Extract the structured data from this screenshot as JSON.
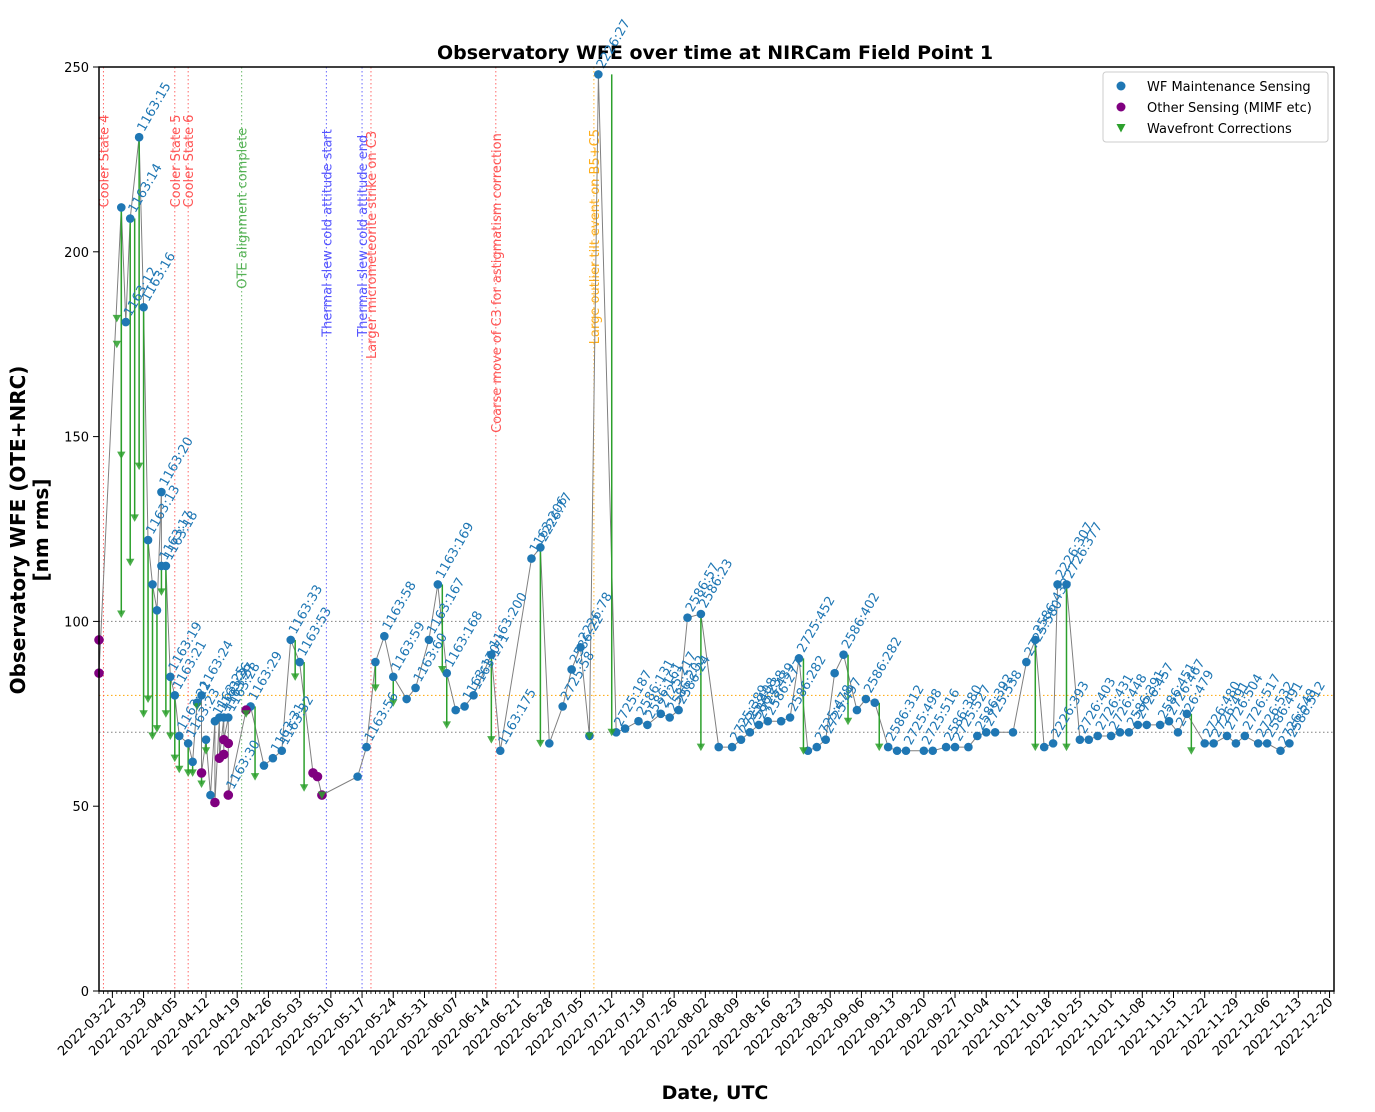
{
  "chart_data": {
    "type": "scatter",
    "title": "Observatory WFE over time at NIRCam Field Point 1",
    "xlabel": "Date, UTC",
    "ylabel_line1": "Observatory WFE (OTE+NRC)",
    "ylabel_line2": "[nm rms]",
    "xlim": [
      "2022-03-19",
      "2022-12-21"
    ],
    "ylim": [
      0,
      250
    ],
    "yticks": [
      0,
      50,
      100,
      150,
      200,
      250
    ],
    "xticks": [
      "2022-03-22",
      "2022-03-29",
      "2022-04-05",
      "2022-04-12",
      "2022-04-19",
      "2022-04-26",
      "2022-05-03",
      "2022-05-10",
      "2022-05-17",
      "2022-05-24",
      "2022-05-31",
      "2022-06-07",
      "2022-06-14",
      "2022-06-21",
      "2022-06-28",
      "2022-07-05",
      "2022-07-12",
      "2022-07-19",
      "2022-07-26",
      "2022-08-02",
      "2022-08-09",
      "2022-08-16",
      "2022-08-23",
      "2022-08-30",
      "2022-09-06",
      "2022-09-13",
      "2022-09-20",
      "2022-09-27",
      "2022-10-04",
      "2022-10-11",
      "2022-10-18",
      "2022-10-25",
      "2022-11-01",
      "2022-11-08",
      "2022-11-15",
      "2022-11-22",
      "2022-11-29",
      "2022-12-06",
      "2022-12-13",
      "2022-12-20"
    ],
    "legend": {
      "placement": "top-right",
      "entries": [
        {
          "label": "WF Maintenance Sensing",
          "color": "#1f77b4",
          "marker": "circle"
        },
        {
          "label": "Other Sensing (MIMF etc)",
          "color": "#800080",
          "marker": "circle"
        },
        {
          "label": "Wavefront Corrections",
          "color": "#2ca02c",
          "marker": "triangle-down"
        }
      ]
    },
    "hlines": [
      {
        "y": 100,
        "color": "#808080",
        "style": "dotted"
      },
      {
        "y": 80,
        "color": "#ffa500",
        "style": "dotted"
      },
      {
        "y": 70,
        "color": "#808080",
        "style": "dotted"
      }
    ],
    "events": [
      {
        "date": "2022-03-20",
        "label": "Cooler State 4",
        "color": "#ff4444",
        "y": 212
      },
      {
        "date": "2022-04-05",
        "label": "Cooler State 5",
        "color": "#ff4444",
        "y": 212
      },
      {
        "date": "2022-04-08",
        "label": "Cooler State 6",
        "color": "#ff4444",
        "y": 212
      },
      {
        "date": "2022-04-20",
        "label": "OTE alignment complete",
        "color": "#44aa44",
        "y": 190
      },
      {
        "date": "2022-05-09",
        "label": "Thermal slew cold attitude start",
        "color": "#4444ff",
        "y": 177
      },
      {
        "date": "2022-05-17",
        "label": "Thermal slew cold attitude end",
        "color": "#4444ff",
        "y": 177
      },
      {
        "date": "2022-05-19",
        "label": "Larger micrometeorite strike on C3",
        "color": "#ff4444",
        "y": 171
      },
      {
        "date": "2022-06-16",
        "label": "Coarse move of C3 for astigmatism correction",
        "color": "#ff4444",
        "y": 151
      },
      {
        "date": "2022-07-08",
        "label": "Large outlier tilt event on B5+C5",
        "color": "#ffa500",
        "y": 175
      }
    ],
    "series": [
      {
        "name": "WF Maintenance Sensing",
        "color": "#1f77b4",
        "points": [
          {
            "x": "2022-03-24",
            "y": 212
          },
          {
            "x": "2022-03-25",
            "y": 181,
            "label": "1163:12"
          },
          {
            "x": "2022-03-26",
            "y": 209,
            "label": "1163:14"
          },
          {
            "x": "2022-03-28",
            "y": 231,
            "label": "1163:15"
          },
          {
            "x": "2022-03-29",
            "y": 185,
            "label": "1163:16"
          },
          {
            "x": "2022-03-30",
            "y": 122,
            "label": "1163:13"
          },
          {
            "x": "2022-03-31",
            "y": 110
          },
          {
            "x": "2022-04-01",
            "y": 103
          },
          {
            "x": "2022-04-02",
            "y": 135,
            "label": "1163:20"
          },
          {
            "x": "2022-04-02",
            "y": 115,
            "label": "1163:17"
          },
          {
            "x": "2022-04-03",
            "y": 115,
            "label": "1163:18"
          },
          {
            "x": "2022-04-04",
            "y": 85,
            "label": "1163:19"
          },
          {
            "x": "2022-04-05",
            "y": 80,
            "label": "1163:21"
          },
          {
            "x": "2022-04-06",
            "y": 69,
            "label": "1163:22"
          },
          {
            "x": "2022-04-08",
            "y": 67,
            "label": "1163:23"
          },
          {
            "x": "2022-04-09",
            "y": 62
          },
          {
            "x": "2022-04-10",
            "y": 78
          },
          {
            "x": "2022-04-11",
            "y": 80,
            "label": "1163:24"
          },
          {
            "x": "2022-04-12",
            "y": 68
          },
          {
            "x": "2022-04-13",
            "y": 53
          },
          {
            "x": "2022-04-14",
            "y": 73,
            "label": "1163:25"
          },
          {
            "x": "2022-04-15",
            "y": 74,
            "label": "1163:26"
          },
          {
            "x": "2022-04-16",
            "y": 74,
            "label": "1163:27"
          },
          {
            "x": "2022-04-17",
            "y": 74,
            "label": "1163:28"
          },
          {
            "x": "2022-04-22",
            "y": 77,
            "label": "1163:29"
          },
          {
            "x": "2022-04-25",
            "y": 61
          },
          {
            "x": "2022-04-27",
            "y": 63,
            "label": "1163:31"
          },
          {
            "x": "2022-04-29",
            "y": 65,
            "label": "1163:32"
          },
          {
            "x": "2022-05-01",
            "y": 95,
            "label": "1163:33"
          },
          {
            "x": "2022-05-03",
            "y": 89,
            "label": "1163:53"
          },
          {
            "x": "2022-05-16",
            "y": 58
          },
          {
            "x": "2022-05-18",
            "y": 66,
            "label": "1163:56"
          },
          {
            "x": "2022-05-20",
            "y": 89
          },
          {
            "x": "2022-05-22",
            "y": 96,
            "label": "1163:58"
          },
          {
            "x": "2022-05-24",
            "y": 85,
            "label": "1163:59"
          },
          {
            "x": "2022-05-27",
            "y": 79
          },
          {
            "x": "2022-05-29",
            "y": 82,
            "label": "1163:60"
          },
          {
            "x": "2022-06-01",
            "y": 95,
            "label": "1163:167"
          },
          {
            "x": "2022-06-03",
            "y": 110,
            "label": "1163:169"
          },
          {
            "x": "2022-06-05",
            "y": 86,
            "label": "1163:168"
          },
          {
            "x": "2022-06-07",
            "y": 76
          },
          {
            "x": "2022-06-09",
            "y": 77,
            "label": "1163:170"
          },
          {
            "x": "2022-06-11",
            "y": 80,
            "label": "1163:171"
          },
          {
            "x": "2022-06-15",
            "y": 91,
            "label": "1163:200"
          },
          {
            "x": "2022-06-17",
            "y": 65,
            "label": "1163:175"
          },
          {
            "x": "2022-06-24",
            "y": 117,
            "label": "1163:206"
          },
          {
            "x": "2022-06-26",
            "y": 120,
            "label": "2226:77"
          },
          {
            "x": "2022-06-28",
            "y": 67
          },
          {
            "x": "2022-07-01",
            "y": 77,
            "label": "2725:58"
          },
          {
            "x": "2022-07-03",
            "y": 87,
            "label": "2586:22"
          },
          {
            "x": "2022-07-05",
            "y": 93,
            "label": "2226:78"
          },
          {
            "x": "2022-07-07",
            "y": 69
          },
          {
            "x": "2022-07-09",
            "y": 248,
            "label": "2226:27"
          },
          {
            "x": "2022-07-13",
            "y": 70,
            "label": "2725:187"
          },
          {
            "x": "2022-07-15",
            "y": 71
          },
          {
            "x": "2022-07-18",
            "y": 73,
            "label": "2586:131"
          },
          {
            "x": "2022-07-20",
            "y": 72,
            "label": "2586:161"
          },
          {
            "x": "2022-07-23",
            "y": 75,
            "label": "2725:217"
          },
          {
            "x": "2022-07-25",
            "y": 74,
            "label": "2586:202"
          },
          {
            "x": "2022-07-27",
            "y": 76,
            "label": "2586:24"
          },
          {
            "x": "2022-07-29",
            "y": 101,
            "label": "2586:57"
          },
          {
            "x": "2022-08-01",
            "y": 102,
            "label": "2586:23"
          },
          {
            "x": "2022-08-05",
            "y": 66
          },
          {
            "x": "2022-08-08",
            "y": 66,
            "label": "2725:389"
          },
          {
            "x": "2022-08-10",
            "y": 68,
            "label": "2725:408"
          },
          {
            "x": "2022-08-12",
            "y": 70,
            "label": "2586:238"
          },
          {
            "x": "2022-08-14",
            "y": 72,
            "label": "2725:439"
          },
          {
            "x": "2022-08-16",
            "y": 73,
            "label": "2586:277"
          },
          {
            "x": "2022-08-19",
            "y": 73
          },
          {
            "x": "2022-08-21",
            "y": 74,
            "label": "2586:282"
          },
          {
            "x": "2022-08-23",
            "y": 90,
            "label": "2725:452"
          },
          {
            "x": "2022-08-25",
            "y": 65
          },
          {
            "x": "2022-08-27",
            "y": 66,
            "label": "2725:478"
          },
          {
            "x": "2022-08-29",
            "y": 68,
            "label": "2725:497"
          },
          {
            "x": "2022-08-31",
            "y": 86
          },
          {
            "x": "2022-09-02",
            "y": 91,
            "label": "2586:402"
          },
          {
            "x": "2022-09-05",
            "y": 76
          },
          {
            "x": "2022-09-07",
            "y": 79,
            "label": "2586:282"
          },
          {
            "x": "2022-09-09",
            "y": 78
          },
          {
            "x": "2022-09-12",
            "y": 66,
            "label": "2586:312"
          },
          {
            "x": "2022-09-14",
            "y": 65
          },
          {
            "x": "2022-09-16",
            "y": 65,
            "label": "2725:498"
          },
          {
            "x": "2022-09-20",
            "y": 65,
            "label": "2725:516"
          },
          {
            "x": "2022-09-22",
            "y": 65
          },
          {
            "x": "2022-09-25",
            "y": 66,
            "label": "2586:380"
          },
          {
            "x": "2022-09-27",
            "y": 66,
            "label": "2725:527"
          },
          {
            "x": "2022-09-30",
            "y": 66
          },
          {
            "x": "2022-10-02",
            "y": 69,
            "label": "2586:392"
          },
          {
            "x": "2022-10-04",
            "y": 70,
            "label": "2725:538"
          },
          {
            "x": "2022-10-06",
            "y": 70
          },
          {
            "x": "2022-10-10",
            "y": 70
          },
          {
            "x": "2022-10-13",
            "y": 89,
            "label": "2725:580"
          },
          {
            "x": "2022-10-15",
            "y": 95,
            "label": "2586:432"
          },
          {
            "x": "2022-10-17",
            "y": 66
          },
          {
            "x": "2022-10-19",
            "y": 67,
            "label": "2226:393"
          },
          {
            "x": "2022-10-20",
            "y": 110,
            "label": "2226:307"
          },
          {
            "x": "2022-10-22",
            "y": 110,
            "label": "2726:377"
          },
          {
            "x": "2022-10-25",
            "y": 68,
            "label": "2726:403"
          },
          {
            "x": "2022-10-27",
            "y": 68
          },
          {
            "x": "2022-10-29",
            "y": 69,
            "label": "2726:431"
          },
          {
            "x": "2022-11-01",
            "y": 69,
            "label": "2726:448"
          },
          {
            "x": "2022-11-03",
            "y": 70
          },
          {
            "x": "2022-11-05",
            "y": 70,
            "label": "2586:391"
          },
          {
            "x": "2022-11-07",
            "y": 72,
            "label": "2726:457"
          },
          {
            "x": "2022-11-09",
            "y": 72
          },
          {
            "x": "2022-11-12",
            "y": 72,
            "label": "2586:451"
          },
          {
            "x": "2022-11-14",
            "y": 73,
            "label": "2726:467"
          },
          {
            "x": "2022-11-16",
            "y": 70,
            "label": "2726:479"
          },
          {
            "x": "2022-11-18",
            "y": 75
          },
          {
            "x": "2022-11-22",
            "y": 67,
            "label": "2726:480"
          },
          {
            "x": "2022-11-24",
            "y": 67,
            "label": "2726:491"
          },
          {
            "x": "2022-11-27",
            "y": 69,
            "label": "2726:504"
          },
          {
            "x": "2022-11-29",
            "y": 67
          },
          {
            "x": "2022-12-01",
            "y": 69,
            "label": "2726:517"
          },
          {
            "x": "2022-12-04",
            "y": 67,
            "label": "2726:532"
          },
          {
            "x": "2022-12-06",
            "y": 67,
            "label": "2586:491"
          },
          {
            "x": "2022-12-09",
            "y": 65,
            "label": "2726:548"
          },
          {
            "x": "2022-12-11",
            "y": 67,
            "label": "2586:512"
          }
        ]
      },
      {
        "name": "Other Sensing (MIMF etc)",
        "color": "#800080",
        "points": [
          {
            "x": "2022-03-19",
            "y": 95
          },
          {
            "x": "2022-03-19",
            "y": 86
          },
          {
            "x": "2022-04-11",
            "y": 59
          },
          {
            "x": "2022-04-14",
            "y": 51
          },
          {
            "x": "2022-04-15",
            "y": 63
          },
          {
            "x": "2022-04-16",
            "y": 64
          },
          {
            "x": "2022-04-16",
            "y": 68
          },
          {
            "x": "2022-04-17",
            "y": 67
          },
          {
            "x": "2022-04-17",
            "y": 53,
            "label": "1163:30"
          },
          {
            "x": "2022-04-21",
            "y": 76
          },
          {
            "x": "2022-05-06",
            "y": 59
          },
          {
            "x": "2022-05-07",
            "y": 58
          },
          {
            "x": "2022-05-08",
            "y": 53
          }
        ]
      },
      {
        "name": "Wavefront Corrections",
        "color": "#2ca02c",
        "points": [
          {
            "x": "2022-03-23",
            "y": 182
          },
          {
            "x": "2022-03-23",
            "y": 175
          },
          {
            "x": "2022-03-24",
            "y": 145
          },
          {
            "x": "2022-03-24",
            "y": 102
          },
          {
            "x": "2022-03-26",
            "y": 116
          },
          {
            "x": "2022-03-27",
            "y": 128
          },
          {
            "x": "2022-03-28",
            "y": 142
          },
          {
            "x": "2022-03-29",
            "y": 75
          },
          {
            "x": "2022-03-30",
            "y": 79
          },
          {
            "x": "2022-03-31",
            "y": 69
          },
          {
            "x": "2022-04-01",
            "y": 71
          },
          {
            "x": "2022-04-02",
            "y": 108
          },
          {
            "x": "2022-04-03",
            "y": 75
          },
          {
            "x": "2022-04-04",
            "y": 69
          },
          {
            "x": "2022-04-05",
            "y": 63
          },
          {
            "x": "2022-04-06",
            "y": 60
          },
          {
            "x": "2022-04-08",
            "y": 59
          },
          {
            "x": "2022-04-09",
            "y": 59
          },
          {
            "x": "2022-04-10",
            "y": 77
          },
          {
            "x": "2022-04-11",
            "y": 56
          },
          {
            "x": "2022-04-12",
            "y": 65
          },
          {
            "x": "2022-04-21",
            "y": 75
          },
          {
            "x": "2022-04-23",
            "y": 58
          },
          {
            "x": "2022-05-02",
            "y": 85
          },
          {
            "x": "2022-05-04",
            "y": 55
          },
          {
            "x": "2022-05-08",
            "y": 53
          },
          {
            "x": "2022-05-20",
            "y": 82
          },
          {
            "x": "2022-05-24",
            "y": 78
          },
          {
            "x": "2022-06-04",
            "y": 87
          },
          {
            "x": "2022-06-05",
            "y": 72
          },
          {
            "x": "2022-06-15",
            "y": 68
          },
          {
            "x": "2022-06-26",
            "y": 67
          },
          {
            "x": "2022-07-07",
            "y": 69
          },
          {
            "x": "2022-07-12",
            "y": 70
          },
          {
            "x": "2022-08-01",
            "y": 66
          },
          {
            "x": "2022-08-24",
            "y": 65
          },
          {
            "x": "2022-09-03",
            "y": 73
          },
          {
            "x": "2022-09-10",
            "y": 66
          },
          {
            "x": "2022-10-15",
            "y": 66
          },
          {
            "x": "2022-10-22",
            "y": 66
          },
          {
            "x": "2022-11-19",
            "y": 65
          }
        ]
      }
    ]
  }
}
